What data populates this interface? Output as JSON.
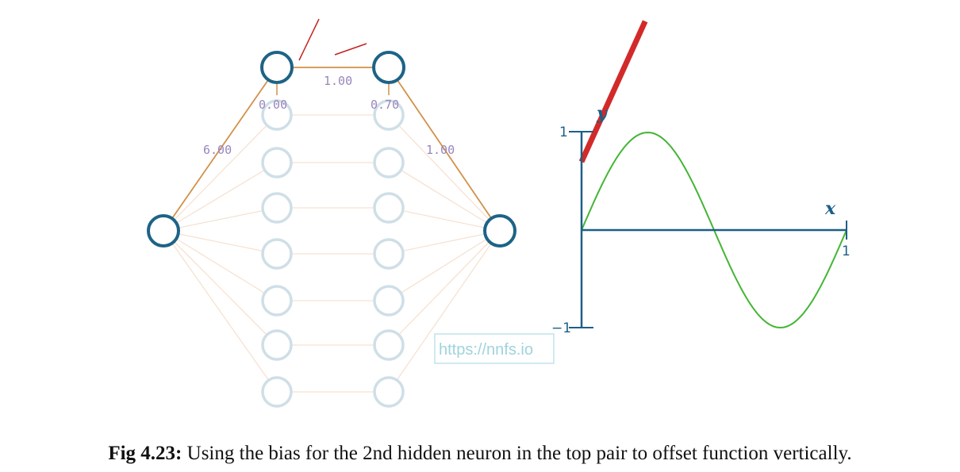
{
  "network": {
    "weights": {
      "input_to_top_hidden": "6.00",
      "top_hidden_pair": "1.00",
      "top_to_output": "1.00"
    },
    "biases": {
      "hidden1_top": "0.00",
      "hidden2_top": "0.70"
    },
    "colors": {
      "active_neuron": "#1d6386",
      "inactive_neuron": "#cfdfe7",
      "active_edge": "#d2914a",
      "inactive_edge": "#f6e2d2",
      "label": "#9a86bd"
    }
  },
  "plot": {
    "x_label": "x",
    "y_label": "y",
    "ticks": {
      "y_max": "1",
      "y_min": "−1",
      "x_max": "1"
    },
    "colors": {
      "axes": "#1d5f86",
      "target": "#44b535",
      "output": "#d22a2a"
    },
    "target_curve": "sin(2πx)",
    "output_line": {
      "slope": 6.0,
      "intercept": 0.7
    }
  },
  "watermark": "https://nnfs.io",
  "caption": {
    "label": "Fig 4.23:",
    "text": " Using the bias for the 2nd hidden neuron in the top pair to offset function vertically."
  }
}
